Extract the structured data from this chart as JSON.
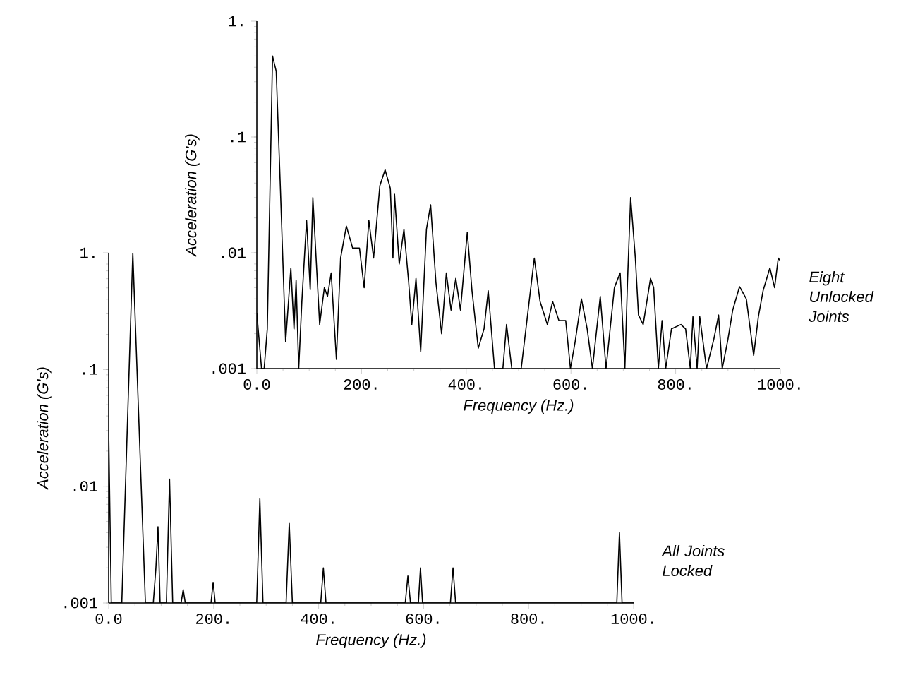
{
  "chart_data": [
    {
      "type": "line",
      "xlabel": "Frequency (Hz.)",
      "ylabel": "Acceleration (G's)",
      "log": "y",
      "xlim": [
        0,
        1000
      ],
      "ylim": [
        0.001,
        1
      ],
      "xticks": [
        {
          "value": 0,
          "label": "0.0"
        },
        {
          "value": 200,
          "label": "200."
        },
        {
          "value": 400,
          "label": "400."
        },
        {
          "value": 600,
          "label": "600."
        },
        {
          "value": 800,
          "label": "800."
        },
        {
          "value": 1000,
          "label": "1000."
        }
      ],
      "yticks": [
        {
          "value": 0.001,
          "label": ".001"
        },
        {
          "value": 0.01,
          "label": ".01"
        },
        {
          "value": 0.1,
          "label": ".1"
        },
        {
          "value": 1,
          "label": "1."
        }
      ],
      "annotations": [
        "Eight Unlocked Joints"
      ],
      "series": [
        {
          "color": "#000000",
          "x": [
            0,
            9,
            14,
            20,
            30,
            37,
            45,
            55,
            65,
            71,
            75,
            80,
            86,
            95,
            102,
            107,
            120,
            129,
            135,
            142,
            152,
            160,
            171,
            183,
            196,
            205,
            214,
            223,
            235,
            245,
            255,
            260,
            263,
            272,
            281,
            290,
            296,
            304,
            313,
            324,
            332,
            342,
            353,
            362,
            371,
            380,
            389,
            402,
            411,
            423,
            434,
            442,
            454,
            470,
            477,
            487,
            505,
            514,
            530,
            541,
            555,
            565,
            577,
            590,
            599,
            608,
            620,
            631,
            641,
            656,
            667,
            683,
            694,
            703,
            708,
            714,
            723,
            729,
            738,
            752,
            758,
            767,
            774,
            781,
            792,
            810,
            819,
            828,
            833,
            841,
            846,
            859,
            873,
            882,
            889,
            900,
            909,
            922,
            935,
            949,
            958,
            967,
            980,
            989,
            996,
            1000
          ],
          "values": [
            0.003,
            0.001,
            0.001,
            0.0022,
            0.5,
            0.37,
            0.036,
            0.0017,
            0.0074,
            0.0022,
            0.0058,
            0.001,
            0.0038,
            0.019,
            0.0048,
            0.03,
            0.0024,
            0.005,
            0.0042,
            0.0067,
            0.0012,
            0.009,
            0.017,
            0.011,
            0.011,
            0.005,
            0.019,
            0.009,
            0.038,
            0.052,
            0.036,
            0.009,
            0.032,
            0.008,
            0.016,
            0.0056,
            0.0024,
            0.006,
            0.0014,
            0.016,
            0.026,
            0.0056,
            0.002,
            0.0067,
            0.0032,
            0.006,
            0.0032,
            0.015,
            0.0047,
            0.0015,
            0.0022,
            0.0047,
            0.001,
            0.001,
            0.0024,
            0.001,
            0.001,
            0.0022,
            0.009,
            0.0038,
            0.0024,
            0.0038,
            0.0026,
            0.0026,
            0.001,
            0.0017,
            0.004,
            0.0022,
            0.001,
            0.0042,
            0.001,
            0.005,
            0.0067,
            0.001,
            0.0056,
            0.03,
            0.009,
            0.0029,
            0.0024,
            0.006,
            0.005,
            0.001,
            0.0026,
            0.001,
            0.0022,
            0.0024,
            0.0022,
            0.001,
            0.0028,
            0.001,
            0.0028,
            0.001,
            0.0018,
            0.0029,
            0.001,
            0.0018,
            0.0032,
            0.0051,
            0.004,
            0.0013,
            0.0028,
            0.0047,
            0.0074,
            0.005,
            0.009,
            0.0085
          ]
        }
      ]
    },
    {
      "type": "line",
      "xlabel": "Frequency (Hz.)",
      "ylabel": "Acceleration (G's)",
      "log": "y",
      "xlim": [
        0,
        1000
      ],
      "ylim": [
        0.001,
        1
      ],
      "xticks": [
        {
          "value": 0,
          "label": "0.0"
        },
        {
          "value": 200,
          "label": "200."
        },
        {
          "value": 400,
          "label": "400."
        },
        {
          "value": 600,
          "label": "600."
        },
        {
          "value": 800,
          "label": "800."
        },
        {
          "value": 1000,
          "label": "1000."
        }
      ],
      "yticks": [
        {
          "value": 0.001,
          "label": ".001"
        },
        {
          "value": 0.01,
          "label": ".01"
        },
        {
          "value": 0.1,
          "label": ".1"
        },
        {
          "value": 1,
          "label": "1."
        }
      ],
      "annotations": [
        "All Joints Locked"
      ],
      "series": [
        {
          "color": "#000000",
          "x": [
            0,
            5,
            25,
            46,
            70,
            85,
            90,
            94,
            98,
            110,
            116,
            122,
            138,
            142,
            146,
            195,
            199,
            203,
            282,
            288,
            294,
            338,
            344,
            350,
            404,
            409,
            414,
            565,
            570,
            575,
            590,
            594,
            598,
            651,
            656,
            661,
            968,
            973,
            978,
            1000
          ],
          "values": [
            0.03,
            0.001,
            0.001,
            1.0,
            0.001,
            0.001,
            0.002,
            0.0045,
            0.001,
            0.001,
            0.0115,
            0.001,
            0.001,
            0.0013,
            0.001,
            0.001,
            0.0015,
            0.001,
            0.001,
            0.0078,
            0.001,
            0.001,
            0.0048,
            0.001,
            0.001,
            0.002,
            0.001,
            0.001,
            0.0017,
            0.001,
            0.001,
            0.002,
            0.001,
            0.001,
            0.002,
            0.001,
            0.001,
            0.004,
            0.001,
            0.001
          ]
        }
      ]
    }
  ]
}
